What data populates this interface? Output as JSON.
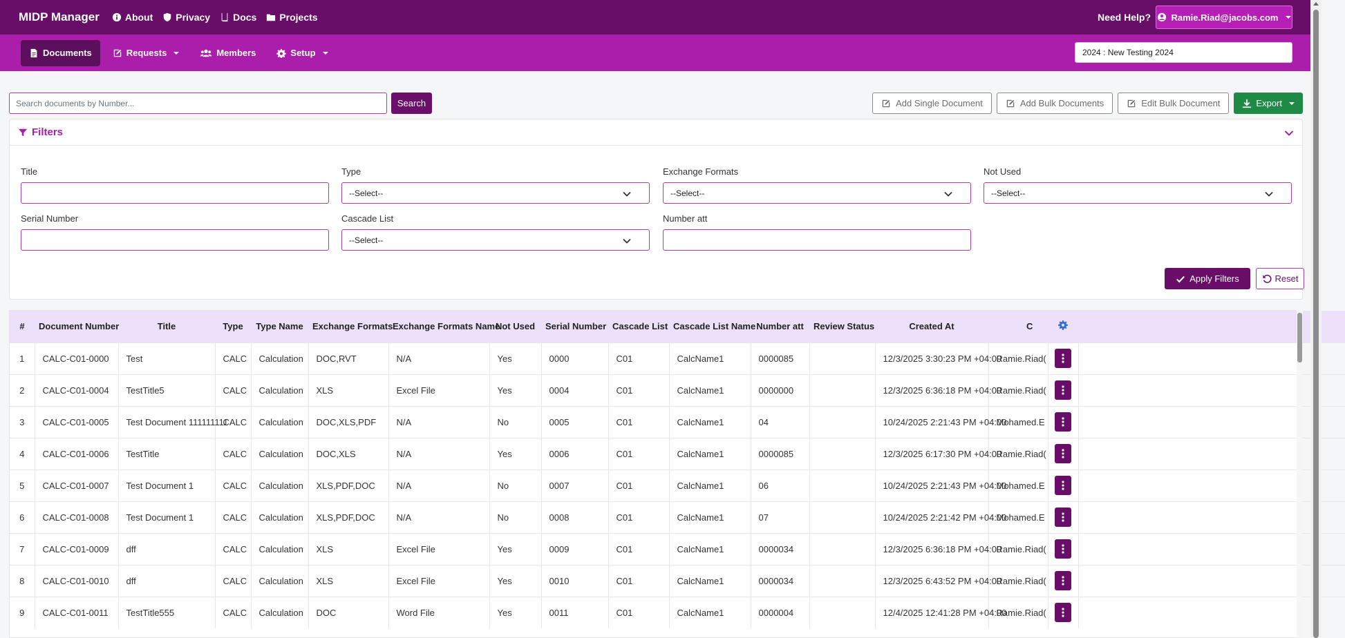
{
  "app": {
    "brand": "MIDP Manager",
    "top_nav": [
      {
        "label": "About",
        "icon": "info-icon"
      },
      {
        "label": "Privacy",
        "icon": "shield-icon"
      },
      {
        "label": "Docs",
        "icon": "book-icon"
      },
      {
        "label": "Projects",
        "icon": "folder-icon"
      }
    ],
    "help_label": "Need Help?",
    "user_email": "Ramie.Riad@jacobs.com"
  },
  "sub_nav": {
    "documents": "Documents",
    "requests": "Requests",
    "members": "Members",
    "setup": "Setup",
    "project": "2024 : New Testing 2024"
  },
  "toolbar": {
    "search_placeholder": "Search documents by Number...",
    "search_label": "Search",
    "add_single": "Add Single Document",
    "add_bulk": "Add Bulk Documents",
    "edit_bulk": "Edit Bulk Document",
    "export": "Export"
  },
  "filters": {
    "title": "Filters",
    "title_label": "Title",
    "type_label": "Type",
    "type_value": "--Select--",
    "exchange_label": "Exchange Formats",
    "exchange_value": "--Select--",
    "not_used_label": "Not Used",
    "not_used_value": "--Select--",
    "serial_label": "Serial Number",
    "cascade_label": "Cascade List",
    "cascade_value": "--Select--",
    "number_att_label": "Number att",
    "apply_label": "Apply Filters",
    "reset_label": "Reset"
  },
  "table": {
    "headers": [
      "#",
      "Document Number",
      "Title",
      "Type",
      "Type Name",
      "Exchange Formats",
      "Exchange Formats Name",
      "Not Used",
      "Serial Number",
      "Cascade List",
      "Cascade List Name",
      "Number att",
      "Review Status",
      "Created At",
      "C"
    ],
    "rows": [
      [
        "1",
        "CALC-C01-0000",
        "Test",
        "CALC",
        "Calculation",
        "DOC,RVT",
        "N/A",
        "Yes",
        "0000",
        "C01",
        "CalcName1",
        "0000085",
        "",
        "12/3/2025 3:30:23 PM +04:00",
        "Ramie.Riad("
      ],
      [
        "2",
        "CALC-C01-0004",
        "TestTitle5",
        "CALC",
        "Calculation",
        "XLS",
        "Excel File",
        "Yes",
        "0004",
        "C01",
        "CalcName1",
        "0000000",
        "",
        "12/3/2025 6:36:18 PM +04:00",
        "Ramie.Riad("
      ],
      [
        "3",
        "CALC-C01-0005",
        "Test Document 111111111",
        "CALC",
        "Calculation",
        "DOC,XLS,PDF",
        "N/A",
        "No",
        "0005",
        "C01",
        "CalcName1",
        "04",
        "",
        "10/24/2025 2:21:43 PM +04:00",
        "Mohamed.E"
      ],
      [
        "4",
        "CALC-C01-0006",
        "TestTitle",
        "CALC",
        "Calculation",
        "DOC,XLS",
        "N/A",
        "Yes",
        "0006",
        "C01",
        "CalcName1",
        "0000085",
        "",
        "12/3/2025 6:17:30 PM +04:00",
        "Ramie.Riad("
      ],
      [
        "5",
        "CALC-C01-0007",
        "Test Document 1",
        "CALC",
        "Calculation",
        "XLS,PDF,DOC",
        "N/A",
        "No",
        "0007",
        "C01",
        "CalcName1",
        "06",
        "",
        "10/24/2025 2:21:43 PM +04:00",
        "Mohamed.E"
      ],
      [
        "6",
        "CALC-C01-0008",
        "Test Document 1",
        "CALC",
        "Calculation",
        "XLS,PDF,DOC",
        "N/A",
        "No",
        "0008",
        "C01",
        "CalcName1",
        "07",
        "",
        "10/24/2025 2:21:42 PM +04:00",
        "Mohamed.E"
      ],
      [
        "7",
        "CALC-C01-0009",
        "dff",
        "CALC",
        "Calculation",
        "XLS",
        "Excel File",
        "Yes",
        "0009",
        "C01",
        "CalcName1",
        "0000034",
        "",
        "12/3/2025 6:36:18 PM +04:00",
        "Ramie.Riad("
      ],
      [
        "8",
        "CALC-C01-0010",
        "dff",
        "CALC",
        "Calculation",
        "XLS",
        "Excel File",
        "Yes",
        "0010",
        "C01",
        "CalcName1",
        "0000034",
        "",
        "12/3/2025 6:43:52 PM +04:00",
        "Ramie.Riad("
      ],
      [
        "9",
        "CALC-C01-0011",
        "TestTitle555",
        "CALC",
        "Calculation",
        "DOC",
        "Word File",
        "Yes",
        "0011",
        "C01",
        "CalcName1",
        "0000004",
        "",
        "12/4/2025 12:41:28 PM +04:00",
        "Ramie.Riad("
      ]
    ]
  },
  "colors": {
    "topbar": "#680d68",
    "subbar": "#ab1eab",
    "accent": "#a322a3",
    "export": "#1e8a45",
    "header_row": "#ede0fa"
  }
}
